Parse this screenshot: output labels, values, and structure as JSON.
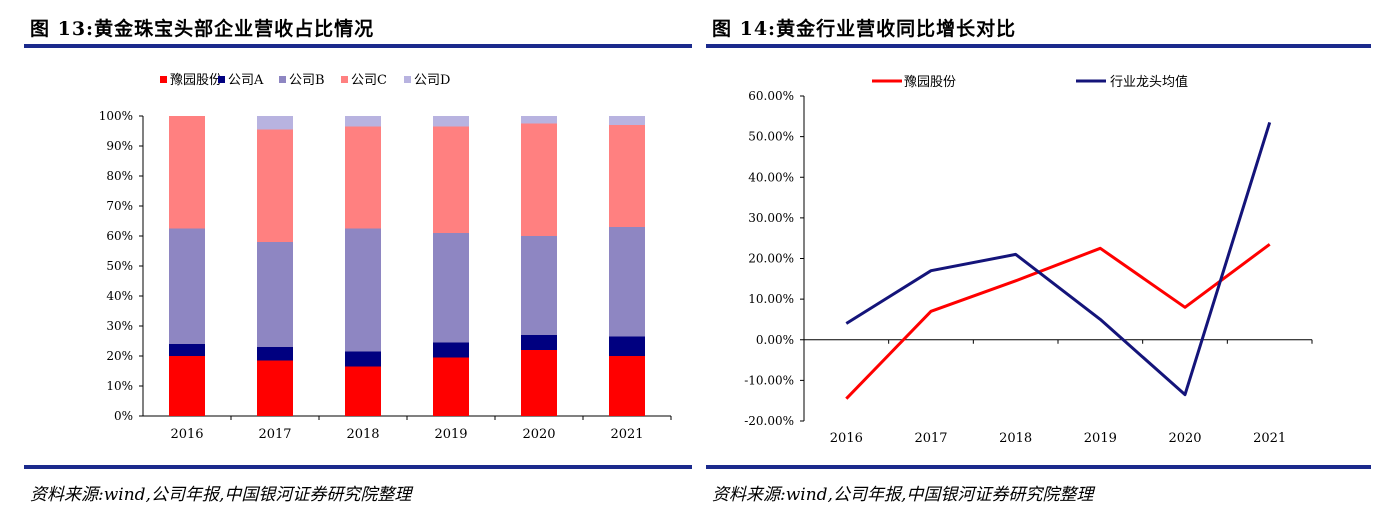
{
  "left_panel": {
    "title": "图 13:黄金珠宝头部企业营收占比情况",
    "source": "资料来源:wind,公司年报,中国银河证券研究院整理"
  },
  "right_panel": {
    "title": "图 14:黄金行业营收同比增长对比",
    "source": "资料来源:wind,公司年报,中国银河证券研究院整理"
  },
  "chart_data": [
    {
      "type": "bar",
      "stacked": true,
      "categories": [
        "2016",
        "2017",
        "2018",
        "2019",
        "2020",
        "2021"
      ],
      "y_ticks": [
        "0%",
        "10%",
        "20%",
        "30%",
        "40%",
        "50%",
        "60%",
        "70%",
        "80%",
        "90%",
        "100%"
      ],
      "ylim": [
        0,
        100
      ],
      "legend_position": "top",
      "series": [
        {
          "name": "豫园股份",
          "color": "#ff0000",
          "values": [
            20,
            18.5,
            16.5,
            19.5,
            22,
            20
          ]
        },
        {
          "name": "公司A",
          "color": "#000080",
          "values": [
            4,
            4.5,
            5,
            5,
            5,
            6.5
          ]
        },
        {
          "name": "公司B",
          "color": "#8e86c2",
          "values": [
            38.5,
            35,
            41,
            36.5,
            33,
            36.5
          ]
        },
        {
          "name": "公司C",
          "color": "#ff8080",
          "values": [
            37.5,
            37.5,
            34,
            35.5,
            37.5,
            34
          ]
        },
        {
          "name": "公司D",
          "color": "#b8b3e0",
          "values": [
            0,
            4.5,
            3.5,
            3.5,
            2.5,
            3
          ]
        }
      ]
    },
    {
      "type": "line",
      "x": [
        "2016",
        "2017",
        "2018",
        "2019",
        "2020",
        "2021"
      ],
      "y_ticks": [
        "-20.00%",
        "-10.00%",
        "0.00%",
        "10.00%",
        "20.00%",
        "30.00%",
        "40.00%",
        "50.00%",
        "60.00%"
      ],
      "ylim": [
        -20,
        60
      ],
      "legend_position": "top",
      "series": [
        {
          "name": "豫园股份",
          "color": "#ff0000",
          "values": [
            -14.5,
            7,
            14.5,
            22.5,
            8,
            23.5
          ]
        },
        {
          "name": "行业龙头均值",
          "color": "#14147a",
          "values": [
            4,
            17,
            21,
            5,
            -13.5,
            53.5
          ]
        }
      ]
    }
  ]
}
